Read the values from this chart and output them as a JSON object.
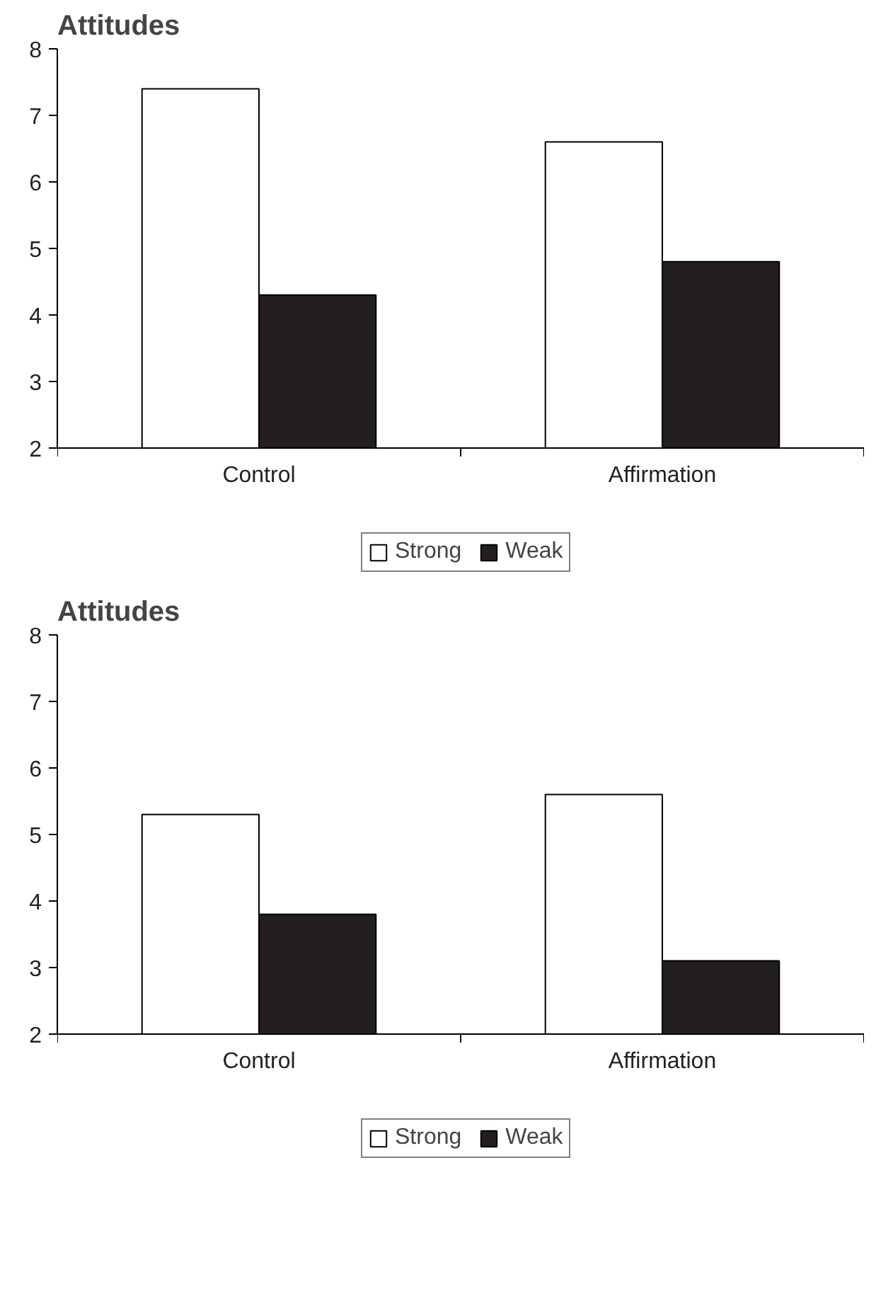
{
  "chart_data": [
    {
      "type": "bar",
      "title": "Attitudes",
      "categories": [
        "Control",
        "Affirmation"
      ],
      "series": [
        {
          "name": "Strong",
          "color": "#ffffff",
          "values": [
            7.4,
            6.6
          ]
        },
        {
          "name": "Weak",
          "color": "#231f20",
          "values": [
            4.3,
            4.8
          ]
        }
      ],
      "ylim": [
        2,
        8
      ],
      "yticks": [
        2,
        3,
        4,
        5,
        6,
        7,
        8
      ],
      "grid": false,
      "legend": "bottom"
    },
    {
      "type": "bar",
      "title": "Attitudes",
      "categories": [
        "Control",
        "Affirmation"
      ],
      "series": [
        {
          "name": "Strong",
          "color": "#ffffff",
          "values": [
            5.3,
            5.6
          ]
        },
        {
          "name": "Weak",
          "color": "#231f20",
          "values": [
            3.8,
            3.1
          ]
        }
      ],
      "ylim": [
        2,
        8
      ],
      "yticks": [
        2,
        3,
        4,
        5,
        6,
        7,
        8
      ],
      "grid": false,
      "legend": "bottom"
    }
  ]
}
